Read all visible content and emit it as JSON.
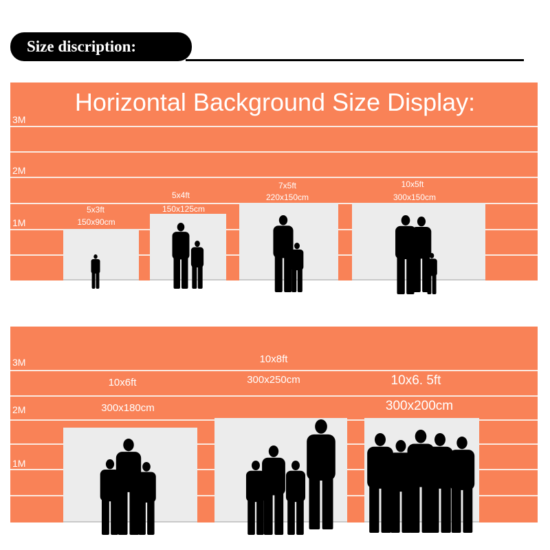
{
  "header": {
    "label": "Size discription:"
  },
  "top": {
    "title": "Horizontal Background Size Display:",
    "scale": [
      "3M",
      "2M",
      "1M"
    ],
    "sizes": [
      {
        "ft": "5x3ft",
        "cm": "150x90cm"
      },
      {
        "ft": "5x4ft",
        "cm": "150x125cm"
      },
      {
        "ft": "7x5ft",
        "cm": "220x150cm"
      },
      {
        "ft": "10x5ft",
        "cm": "300x150cm"
      }
    ]
  },
  "bottom": {
    "scale": [
      "3M",
      "2M",
      "1M"
    ],
    "sizes": [
      {
        "ft": "10x6ft",
        "cm": "300x180cm"
      },
      {
        "ft": "10x8ft",
        "cm": "300x250cm"
      },
      {
        "ft": "10x6. 5ft",
        "cm": "300x200cm"
      }
    ]
  },
  "colors": {
    "accent": "#f98257",
    "panel": "#ececec",
    "silhouette": "#000000"
  }
}
